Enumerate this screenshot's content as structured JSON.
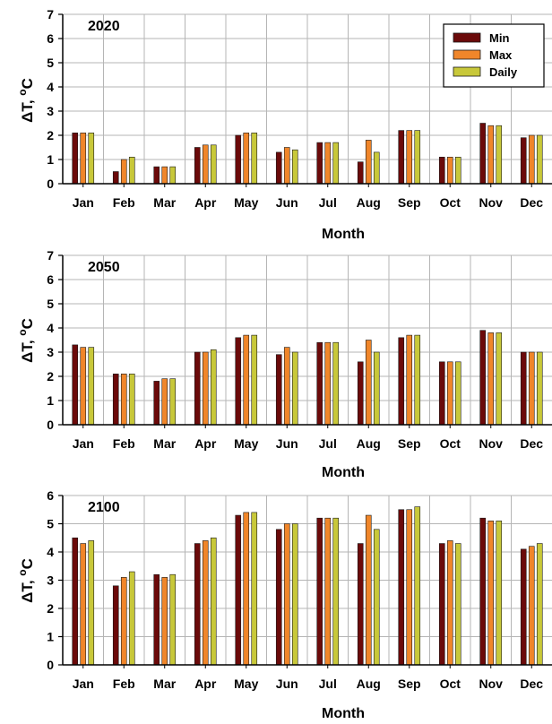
{
  "chart_data": [
    {
      "type": "bar",
      "title": "2020",
      "xlabel": "Month",
      "ylabel_main": "ΔT, ",
      "ylabel_sup": "o",
      "ylabel_unit": "C",
      "ylim": [
        0,
        7
      ],
      "yticks": [
        0,
        1,
        2,
        3,
        4,
        5,
        6,
        7
      ],
      "grid": true,
      "legend": "top-right",
      "categories": [
        "Jan",
        "Feb",
        "Mar",
        "Apr",
        "May",
        "Jun",
        "Jul",
        "Aug",
        "Sep",
        "Oct",
        "Nov",
        "Dec"
      ],
      "series": [
        {
          "name": "Min",
          "color": "#6b0a0a",
          "values": [
            2.1,
            0.5,
            0.7,
            1.5,
            2.0,
            1.3,
            1.7,
            0.9,
            2.2,
            1.1,
            2.5,
            1.9
          ]
        },
        {
          "name": "Max",
          "color": "#f0862a",
          "values": [
            2.1,
            1.0,
            0.7,
            1.6,
            2.1,
            1.5,
            1.7,
            1.8,
            2.2,
            1.1,
            2.4,
            2.0
          ]
        },
        {
          "name": "Daily",
          "color": "#c8c83a",
          "values": [
            2.1,
            1.1,
            0.7,
            1.6,
            2.1,
            1.4,
            1.7,
            1.3,
            2.2,
            1.1,
            2.4,
            2.0
          ]
        }
      ]
    },
    {
      "type": "bar",
      "title": "2050",
      "xlabel": "Month",
      "ylabel_main": "ΔT, ",
      "ylabel_sup": "o",
      "ylabel_unit": "C",
      "ylim": [
        0,
        7
      ],
      "yticks": [
        0,
        1,
        2,
        3,
        4,
        5,
        6,
        7
      ],
      "grid": true,
      "categories": [
        "Jan",
        "Feb",
        "Mar",
        "Apr",
        "May",
        "Jun",
        "Jul",
        "Aug",
        "Sep",
        "Oct",
        "Nov",
        "Dec"
      ],
      "series": [
        {
          "name": "Min",
          "color": "#6b0a0a",
          "values": [
            3.3,
            2.1,
            1.8,
            3.0,
            3.6,
            2.9,
            3.4,
            2.6,
            3.6,
            2.6,
            3.9,
            3.0
          ]
        },
        {
          "name": "Max",
          "color": "#f0862a",
          "values": [
            3.2,
            2.1,
            1.9,
            3.0,
            3.7,
            3.2,
            3.4,
            3.5,
            3.7,
            2.6,
            3.8,
            3.0
          ]
        },
        {
          "name": "Daily",
          "color": "#c8c83a",
          "values": [
            3.2,
            2.1,
            1.9,
            3.1,
            3.7,
            3.0,
            3.4,
            3.0,
            3.7,
            2.6,
            3.8,
            3.0
          ]
        }
      ]
    },
    {
      "type": "bar",
      "title": "2100",
      "xlabel": "Month",
      "ylabel_main": "ΔT, ",
      "ylabel_sup": "o",
      "ylabel_unit": "C",
      "ylim": [
        0,
        6
      ],
      "yticks": [
        0,
        1,
        2,
        3,
        4,
        5,
        6
      ],
      "grid": true,
      "categories": [
        "Jan",
        "Feb",
        "Mar",
        "Apr",
        "May",
        "Jun",
        "Jul",
        "Aug",
        "Sep",
        "Oct",
        "Nov",
        "Dec"
      ],
      "series": [
        {
          "name": "Min",
          "color": "#6b0a0a",
          "values": [
            4.5,
            2.8,
            3.2,
            4.3,
            5.3,
            4.8,
            5.2,
            4.3,
            5.5,
            4.3,
            5.2,
            4.1
          ]
        },
        {
          "name": "Max",
          "color": "#f0862a",
          "values": [
            4.3,
            3.1,
            3.1,
            4.4,
            5.4,
            5.0,
            5.2,
            5.3,
            5.5,
            4.4,
            5.1,
            4.2
          ]
        },
        {
          "name": "Daily",
          "color": "#c8c83a",
          "values": [
            4.4,
            3.3,
            3.2,
            4.5,
            5.4,
            5.0,
            5.2,
            4.8,
            5.6,
            4.3,
            5.1,
            4.3
          ]
        }
      ]
    }
  ]
}
